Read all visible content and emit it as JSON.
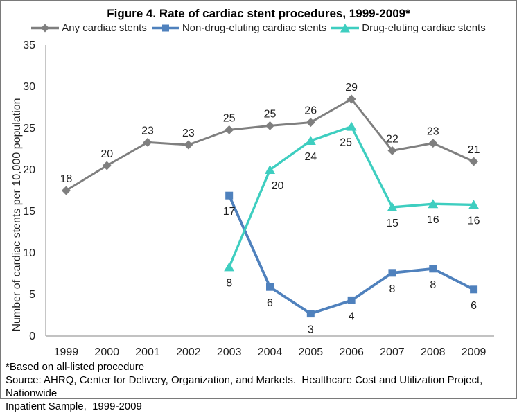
{
  "figure": {
    "title": "Figure 4. Rate of cardiac stent procedures, 1999-2009*",
    "footnote": "*Based on all-listed procedure",
    "source": "Source: AHRQ, Center for Delivery, Organization, and Markets.  Healthcare Cost and Utilization Project, Nationwide\nInpatient Sample,  1999-2009"
  },
  "chart_data": {
    "type": "line",
    "title": "Figure 4. Rate of cardiac stent procedures, 1999-2009*",
    "xlabel": "",
    "ylabel": "Number of cardiac stents per 10,000 population",
    "ylim": [
      0,
      35
    ],
    "ytick_step": 5,
    "grid": false,
    "legend_position": "top",
    "axis_color": "#adadad",
    "text_color": "#1f1f1f",
    "categories": [
      "1999",
      "2000",
      "2001",
      "2002",
      "2003",
      "2004",
      "2005",
      "2006",
      "2007",
      "2008",
      "2009"
    ],
    "series": [
      {
        "name": "Any cardiac stents",
        "marker": "diamond",
        "color": "#7f7f7f",
        "values": [
          17.5,
          20.5,
          23.3,
          23.0,
          24.8,
          25.3,
          25.7,
          28.5,
          22.3,
          23.2,
          21.0
        ],
        "point_labels": [
          "18",
          "20",
          "23",
          "23",
          "25",
          "25",
          "26",
          "29",
          "22",
          "23",
          "21"
        ],
        "label_side": "above"
      },
      {
        "name": "Non-drug-eluting cardiac stents",
        "marker": "square",
        "color": "#4f81bd",
        "values": [
          null,
          null,
          null,
          null,
          16.9,
          5.9,
          2.7,
          4.3,
          7.6,
          8.1,
          5.6
        ],
        "point_labels": [
          null,
          null,
          null,
          null,
          "17",
          "6",
          "3",
          "4",
          "8",
          "8",
          "6"
        ],
        "label_side": "below"
      },
      {
        "name": "Drug-eluting cardiac stents",
        "marker": "triangle",
        "color": "#3ecec0",
        "values": [
          null,
          null,
          null,
          null,
          8.3,
          20.0,
          23.5,
          25.2,
          15.5,
          15.9,
          15.8
        ],
        "point_labels": [
          null,
          null,
          null,
          null,
          "8",
          "20",
          "24",
          "25",
          "15",
          "16",
          "16"
        ],
        "label_side": "below",
        "label_dx": [
          0,
          0,
          0,
          0,
          0,
          11,
          0,
          -8,
          0,
          0,
          0
        ]
      }
    ]
  }
}
